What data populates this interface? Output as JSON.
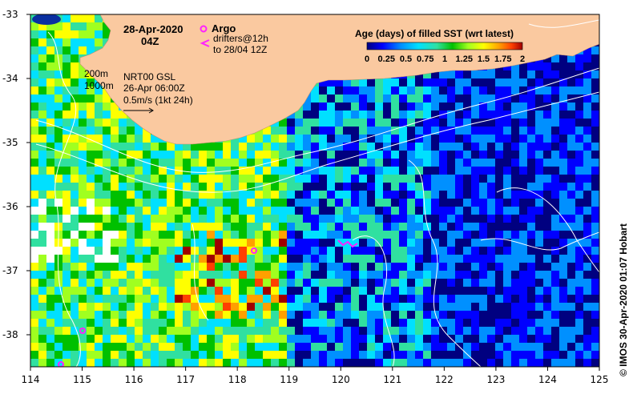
{
  "map": {
    "date": "28-Apr-2020",
    "time": "04Z",
    "argo_label": "Argo",
    "drifter_label_1": "drifters@12h",
    "drifter_label_2": "to 28/04 12Z",
    "contour_shallow": "200m",
    "contour_deep": "1000m",
    "product": "NRT00 GSL",
    "analysis_time": "26-Apr 06:00Z",
    "scale_label": "0.5m/s (1kt 24h)",
    "credit": "© IMOS 30-Apr-2020 01:07 Hobart",
    "colors": {
      "land": "#fac9a0",
      "argo": "#ff22ff",
      "drifter": "#ff22ff",
      "contour": "#ffffff",
      "missing": "#ffffff"
    }
  },
  "legend": {
    "title": "Age (days) of filled SST (wrt latest)",
    "ticks": [
      "0",
      "0.25",
      "0.5",
      "0.75",
      "1",
      "1.25",
      "1.5",
      "1.75",
      "2"
    ],
    "range": [
      0,
      2
    ],
    "colors": [
      "#000080",
      "#0000ff",
      "#0090ff",
      "#00e0ff",
      "#30e0a0",
      "#00c000",
      "#a0ff20",
      "#ffff00",
      "#ffa000",
      "#ff4000",
      "#a00000"
    ]
  },
  "axes": {
    "lon_ticks": [
      "114",
      "115",
      "116",
      "117",
      "118",
      "119",
      "120",
      "121",
      "122",
      "123",
      "124",
      "125"
    ],
    "lat_ticks": [
      "-33",
      "-34",
      "-35",
      "-36",
      "-37",
      "-38"
    ],
    "lon_range": [
      114,
      125
    ],
    "lat_range": [
      -38.5,
      -33
    ]
  }
}
